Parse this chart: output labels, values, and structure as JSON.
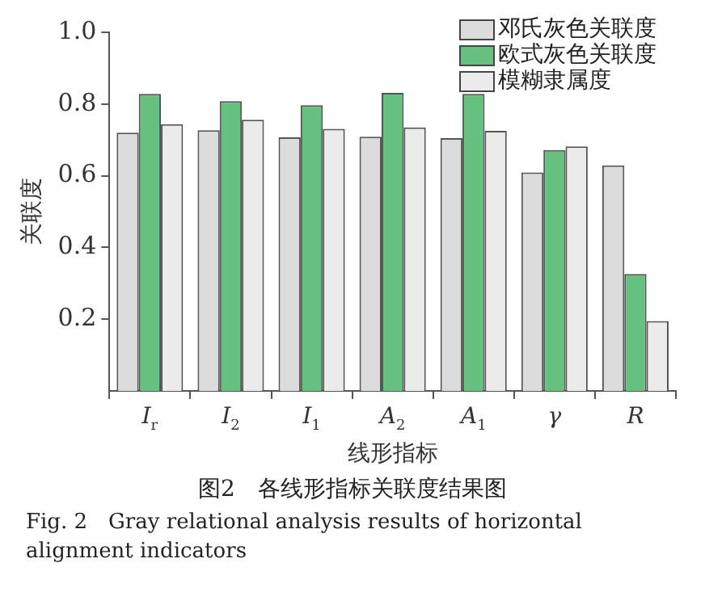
{
  "chart_data": {
    "type": "bar",
    "title": "图2　各线形指标关联度结果图",
    "annotations": [
      "Fig. 2　Gray relational analysis results of horizontal alignment indicators"
    ],
    "xlabel": "线形指标",
    "ylabel": "关联度",
    "categories": [
      "I$_{r}$",
      "I$_{2}$",
      "I$_{1}$",
      "A$_{2}$",
      "A$_{1}$",
      "γ",
      "R"
    ],
    "series": [
      {
        "name": "邓氏灰色关联度",
        "color": "#dcdcdc",
        "values": [
          0.72,
          0.727,
          0.707,
          0.709,
          0.705,
          0.609,
          0.629
        ]
      },
      {
        "name": "欧式灰色关联度",
        "color": "#66c080",
        "values": [
          0.828,
          0.808,
          0.797,
          0.831,
          0.828,
          0.672,
          0.326
        ]
      },
      {
        "name": "模糊隶属度",
        "color": "#ebebeb",
        "values": [
          0.744,
          0.756,
          0.731,
          0.735,
          0.725,
          0.682,
          0.195
        ]
      }
    ],
    "ylim": [
      0,
      1
    ],
    "yticks": [
      0.2,
      0.4,
      0.6,
      0.8,
      {
        "value": 1,
        "label": "1.0"
      }
    ],
    "legend": "top right"
  }
}
